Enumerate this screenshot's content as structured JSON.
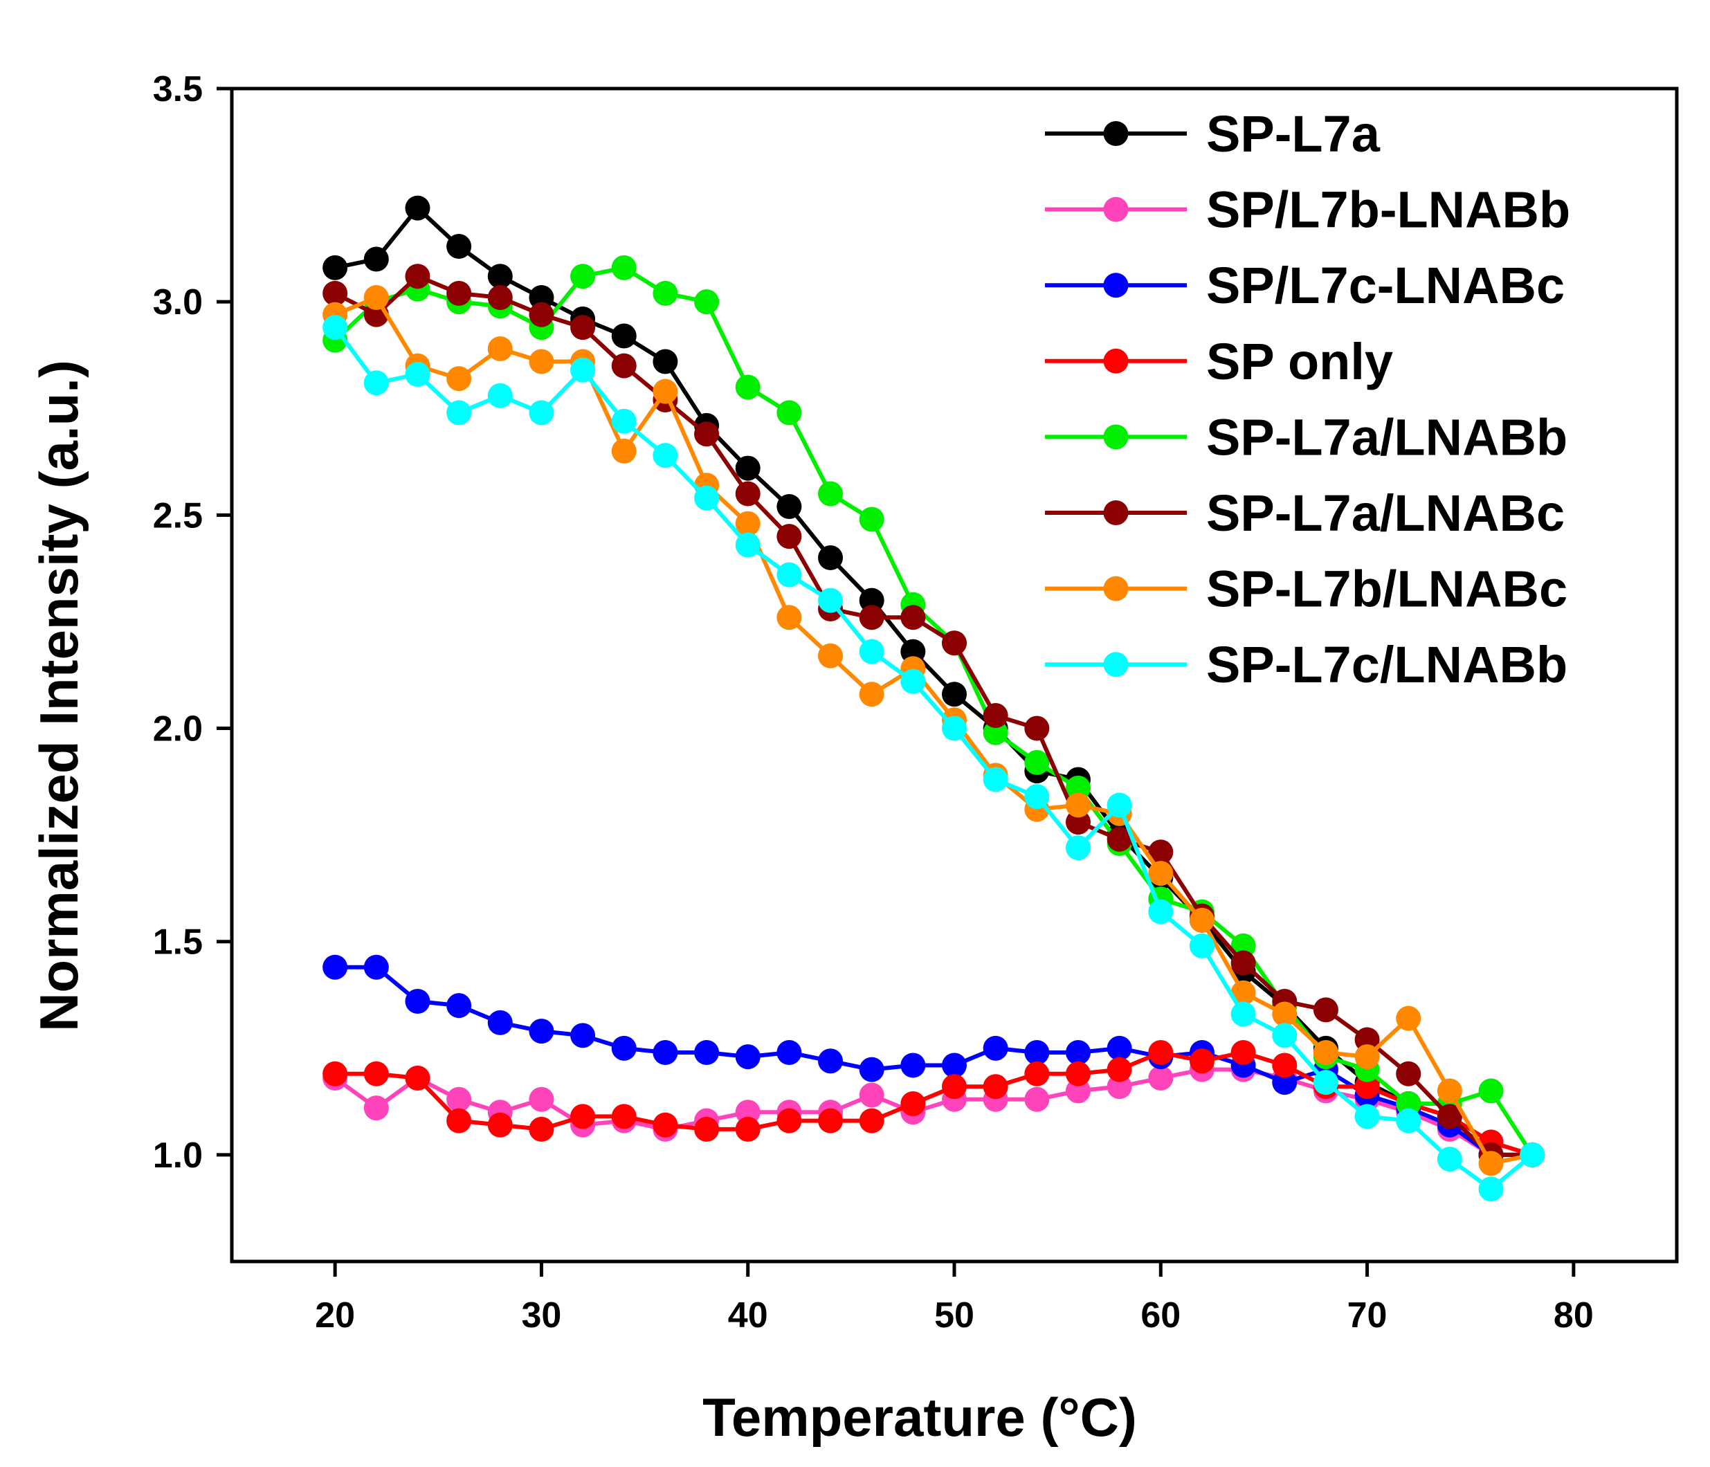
{
  "chart_data": {
    "type": "line",
    "title": "",
    "xlabel": "Temperature (°C)",
    "ylabel": "Normalized Intensity (a.u.)",
    "xlim": [
      15,
      85
    ],
    "ylim": [
      0.75,
      3.5
    ],
    "xticks": [
      20,
      30,
      40,
      50,
      60,
      70,
      80
    ],
    "yticks": [
      1.0,
      1.5,
      2.0,
      2.5,
      3.0,
      3.5
    ],
    "x": [
      20,
      22,
      24,
      26,
      28,
      30,
      32,
      34,
      36,
      38,
      40,
      42,
      44,
      46,
      48,
      50,
      52,
      54,
      56,
      58,
      60,
      62,
      64,
      66,
      68,
      70,
      72,
      74,
      76,
      78
    ],
    "legend_position": "top-right",
    "grid": false,
    "series": [
      {
        "name": "SP-L7a",
        "color": "#000000",
        "values": [
          3.08,
          3.1,
          3.22,
          3.13,
          3.06,
          3.01,
          2.96,
          2.92,
          2.86,
          2.71,
          2.61,
          2.52,
          2.4,
          2.3,
          2.18,
          2.08,
          2.0,
          1.9,
          1.88,
          1.75,
          1.65,
          1.55,
          1.43,
          1.35,
          1.25,
          1.17,
          1.12,
          1.09,
          1.0,
          1.0
        ]
      },
      {
        "name": "SP/L7b-LNABb",
        "color": "#ff44bb",
        "values": [
          1.18,
          1.11,
          1.18,
          1.13,
          1.1,
          1.13,
          1.07,
          1.08,
          1.06,
          1.08,
          1.1,
          1.1,
          1.1,
          1.14,
          1.1,
          1.13,
          1.13,
          1.13,
          1.15,
          1.16,
          1.18,
          1.2,
          1.2,
          1.18,
          1.15,
          1.13,
          1.1,
          1.06,
          1.0,
          1.0
        ]
      },
      {
        "name": "SP/L7c-LNABc",
        "color": "#0000ff",
        "values": [
          1.44,
          1.44,
          1.36,
          1.35,
          1.31,
          1.29,
          1.28,
          1.25,
          1.24,
          1.24,
          1.23,
          1.24,
          1.22,
          1.2,
          1.21,
          1.21,
          1.25,
          1.24,
          1.24,
          1.25,
          1.23,
          1.24,
          1.21,
          1.17,
          1.2,
          1.14,
          1.11,
          1.07,
          1.0,
          1.0
        ]
      },
      {
        "name": "SP only",
        "color": "#ff0000",
        "values": [
          1.19,
          1.19,
          1.18,
          1.08,
          1.07,
          1.06,
          1.09,
          1.09,
          1.07,
          1.06,
          1.06,
          1.08,
          1.08,
          1.08,
          1.12,
          1.16,
          1.16,
          1.19,
          1.19,
          1.2,
          1.24,
          1.22,
          1.24,
          1.21,
          1.16,
          1.16,
          1.12,
          1.09,
          1.03,
          1.0
        ]
      },
      {
        "name": "SP-L7a/LNABb",
        "color": "#00ee00",
        "values": [
          2.91,
          3.0,
          3.03,
          3.0,
          2.99,
          2.94,
          3.06,
          3.08,
          3.02,
          3.0,
          2.8,
          2.74,
          2.55,
          2.49,
          2.29,
          2.2,
          1.99,
          1.92,
          1.86,
          1.73,
          1.6,
          1.57,
          1.49,
          1.35,
          1.23,
          1.2,
          1.12,
          1.12,
          1.15,
          1.0
        ]
      },
      {
        "name": "SP-L7a/LNABc",
        "color": "#8b0000",
        "values": [
          3.02,
          2.97,
          3.06,
          3.02,
          3.01,
          2.97,
          2.94,
          2.85,
          2.77,
          2.69,
          2.55,
          2.45,
          2.28,
          2.26,
          2.26,
          2.2,
          2.03,
          2.0,
          1.78,
          1.74,
          1.71,
          1.56,
          1.45,
          1.36,
          1.34,
          1.27,
          1.19,
          1.09,
          1.0,
          1.0
        ]
      },
      {
        "name": "SP-L7b/LNABc",
        "color": "#ff8800",
        "values": [
          2.97,
          3.01,
          2.85,
          2.82,
          2.89,
          2.86,
          2.86,
          2.65,
          2.79,
          2.57,
          2.48,
          2.26,
          2.17,
          2.08,
          2.14,
          2.02,
          1.89,
          1.81,
          1.82,
          1.8,
          1.66,
          1.55,
          1.38,
          1.33,
          1.24,
          1.23,
          1.32,
          1.15,
          0.98,
          1.0
        ]
      },
      {
        "name": "SP-L7c/LNABb",
        "color": "#00ffff",
        "values": [
          2.94,
          2.81,
          2.83,
          2.74,
          2.78,
          2.74,
          2.84,
          2.72,
          2.64,
          2.54,
          2.43,
          2.36,
          2.3,
          2.18,
          2.11,
          2.0,
          1.88,
          1.84,
          1.72,
          1.82,
          1.57,
          1.49,
          1.33,
          1.28,
          1.17,
          1.09,
          1.08,
          0.99,
          0.92,
          1.0
        ]
      }
    ]
  }
}
